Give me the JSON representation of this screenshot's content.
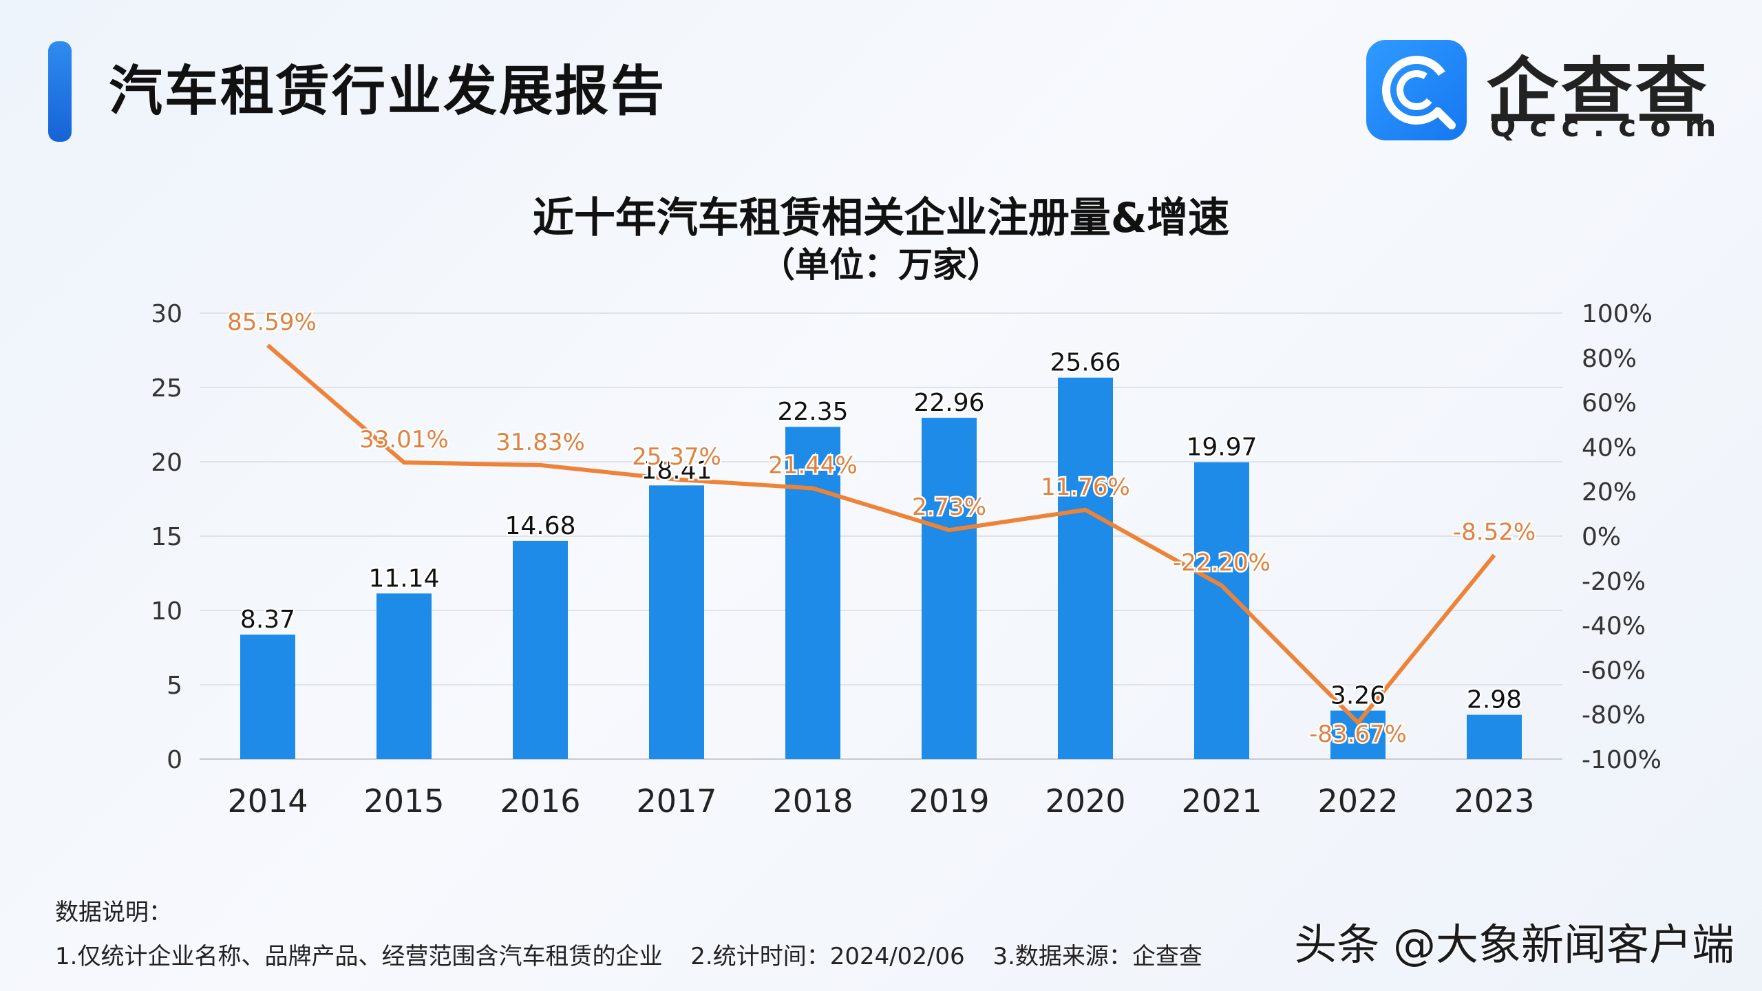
{
  "header": {
    "report_title": "汽车租赁行业发展报告",
    "logo_name": "企查查",
    "logo_domain": "Qcc.com"
  },
  "chart_data": {
    "type": "bar",
    "title": "近十年汽车租赁相关企业注册量&增速",
    "subtitle": "（单位：万家）",
    "categories": [
      "2014",
      "2015",
      "2016",
      "2017",
      "2018",
      "2019",
      "2020",
      "2021",
      "2022",
      "2023"
    ],
    "series": [
      {
        "type": "bar",
        "axis": "left",
        "values": [
          8.37,
          11.14,
          14.68,
          18.41,
          22.35,
          22.96,
          25.66,
          19.97,
          3.26,
          2.98
        ],
        "labels": [
          "8.37",
          "11.14",
          "14.68",
          "18.41",
          "22.35",
          "22.96",
          "25.66",
          "19.97",
          "3.26",
          "2.98"
        ],
        "color": "#1f8be8"
      },
      {
        "type": "line",
        "axis": "right",
        "values": [
          85.59,
          33.01,
          31.83,
          25.37,
          21.44,
          2.73,
          11.76,
          -22.2,
          -83.67,
          -8.52
        ],
        "labels": [
          "85.59%",
          "33.01%",
          "31.83%",
          "25.37%",
          "21.44%",
          "2.73%",
          "11.76%",
          "-22.20%",
          "-83.67%",
          "-8.52%"
        ],
        "color": "#ee8338"
      }
    ],
    "y_left": {
      "min": 0,
      "max": 30,
      "ticks": [
        "0",
        "5",
        "10",
        "15",
        "20",
        "25",
        "30"
      ]
    },
    "y_right": {
      "min": -100,
      "max": 100,
      "ticks": [
        "-100%",
        "-80%",
        "-60%",
        "-40%",
        "-20%",
        "0%",
        "20%",
        "40%",
        "60%",
        "80%",
        "100%"
      ]
    },
    "grid": true,
    "legend": "none"
  },
  "notes": {
    "heading": "数据说明：",
    "items": [
      "1.仅统计企业名称、品牌产品、经营范围含汽车租赁的企业",
      "2.统计时间：2024/02/06",
      "3.数据来源：企查查"
    ]
  },
  "watermark": "头条 @大象新闻客户端"
}
